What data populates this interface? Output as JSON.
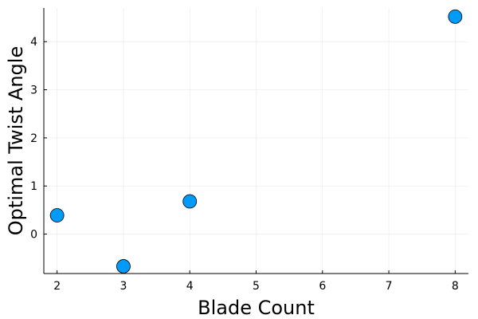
{
  "chart_data": {
    "type": "scatter",
    "xlabel": "Blade Count",
    "ylabel": "Optimal Twist Angle",
    "x": [
      2,
      3,
      4,
      8
    ],
    "y": [
      0.39,
      -0.67,
      0.68,
      4.52
    ],
    "xlim": [
      1.8,
      8.2
    ],
    "ylim": [
      -0.82,
      4.7
    ],
    "xticks": [
      "2",
      "3",
      "4",
      "5",
      "6",
      "7",
      "8"
    ],
    "yticks": [
      "0",
      "1",
      "2",
      "3",
      "4"
    ],
    "grid": true,
    "legend": "none",
    "marker_color": "#009af9",
    "marker_edge_color": "#000000"
  }
}
